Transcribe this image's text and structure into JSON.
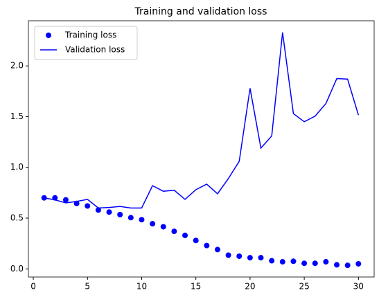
{
  "chart_data": {
    "type": "line",
    "title": "Training and validation loss",
    "x": [
      1,
      2,
      3,
      4,
      5,
      6,
      7,
      8,
      9,
      10,
      11,
      12,
      13,
      14,
      15,
      16,
      17,
      18,
      19,
      20,
      21,
      22,
      23,
      24,
      25,
      26,
      27,
      28,
      29,
      30
    ],
    "series": [
      {
        "name": "Training loss",
        "color": "#0000ff",
        "marker": "dot",
        "values": [
          0.7,
          0.7,
          0.68,
          0.645,
          0.62,
          0.58,
          0.56,
          0.535,
          0.505,
          0.485,
          0.445,
          0.415,
          0.37,
          0.33,
          0.28,
          0.23,
          0.19,
          0.135,
          0.125,
          0.11,
          0.11,
          0.08,
          0.07,
          0.075,
          0.055,
          0.055,
          0.07,
          0.04,
          0.035,
          0.05
        ]
      },
      {
        "name": "Validation loss",
        "color": "#0000ff",
        "marker": "line",
        "values": [
          0.7,
          0.68,
          0.65,
          0.665,
          0.685,
          0.6,
          0.605,
          0.615,
          0.6,
          0.6,
          0.82,
          0.765,
          0.775,
          0.685,
          0.78,
          0.835,
          0.74,
          0.89,
          1.06,
          1.78,
          1.19,
          1.31,
          2.33,
          1.53,
          1.45,
          1.505,
          1.63,
          1.875,
          1.87,
          1.515
        ]
      }
    ],
    "xlim": [
      -0.45,
      31.45
    ],
    "xticks": [
      0,
      5,
      10,
      15,
      20,
      25,
      30
    ],
    "ylim": [
      -0.08,
      2.445
    ],
    "yticks": [
      {
        "value": 0,
        "label": "0.0"
      },
      0.5,
      {
        "value": 1,
        "label": "1.0"
      },
      1.5,
      {
        "value": 2,
        "label": "2.0"
      }
    ],
    "legend": "upper left"
  }
}
